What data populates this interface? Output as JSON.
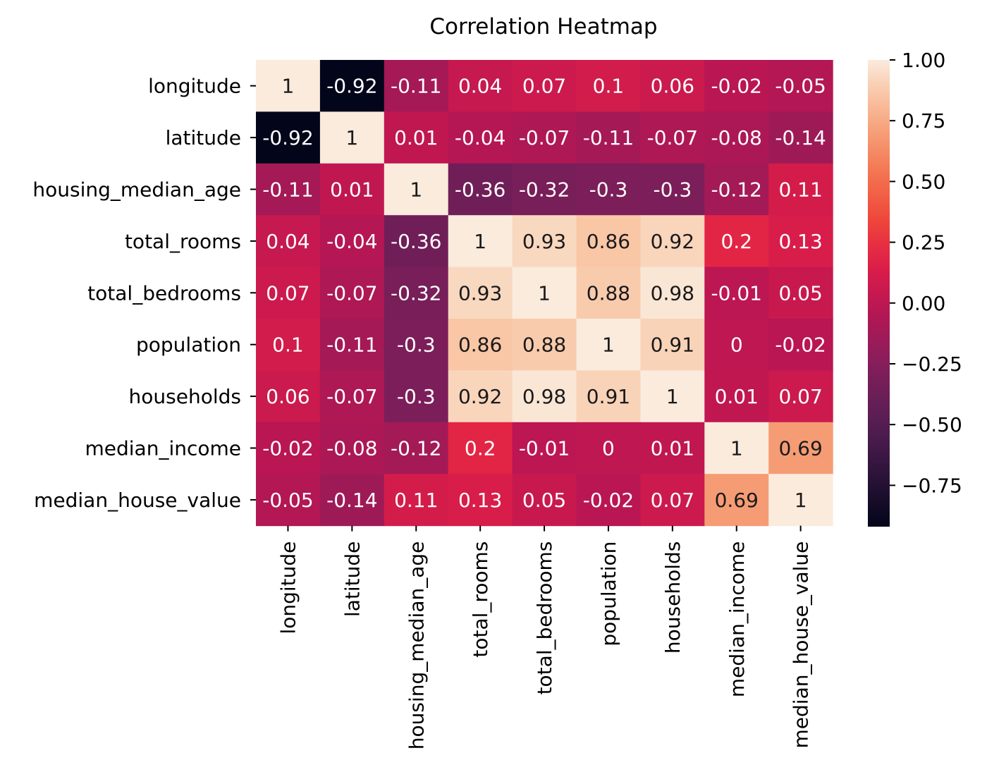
{
  "chart_data": {
    "type": "heatmap",
    "title": "Correlation Heatmap",
    "xlabel": "",
    "ylabel": "",
    "categories": [
      "longitude",
      "latitude",
      "housing_median_age",
      "total_rooms",
      "total_bedrooms",
      "population",
      "households",
      "median_income",
      "median_house_value"
    ],
    "values": [
      [
        1,
        -0.92,
        -0.11,
        0.04,
        0.07,
        0.1,
        0.06,
        -0.02,
        -0.05
      ],
      [
        -0.92,
        1,
        0.01,
        -0.04,
        -0.07,
        -0.11,
        -0.07,
        -0.08,
        -0.14
      ],
      [
        -0.11,
        0.01,
        1,
        -0.36,
        -0.32,
        -0.3,
        -0.3,
        -0.12,
        0.11
      ],
      [
        0.04,
        -0.04,
        -0.36,
        1,
        0.93,
        0.86,
        0.92,
        0.2,
        0.13
      ],
      [
        0.07,
        -0.07,
        -0.32,
        0.93,
        1,
        0.88,
        0.98,
        -0.01,
        0.05
      ],
      [
        0.1,
        -0.11,
        -0.3,
        0.86,
        0.88,
        1,
        0.91,
        0,
        -0.02
      ],
      [
        0.06,
        -0.07,
        -0.3,
        0.92,
        0.98,
        0.91,
        1,
        0.01,
        0.07
      ],
      [
        -0.02,
        -0.08,
        -0.12,
        0.2,
        -0.01,
        0,
        0.01,
        1,
        0.69
      ],
      [
        -0.05,
        -0.14,
        0.11,
        0.13,
        0.05,
        -0.02,
        0.07,
        0.69,
        1
      ]
    ],
    "colorbar": {
      "range": [
        -0.92,
        1
      ],
      "ticks": [
        -0.75,
        -0.5,
        -0.25,
        0.0,
        0.25,
        0.5,
        0.75,
        1.0
      ],
      "tick_labels": [
        "−0.75",
        "−0.50",
        "−0.25",
        "0.00",
        "0.25",
        "0.50",
        "0.75",
        "1.00"
      ],
      "colormap": "rocket"
    },
    "annotations": true,
    "grid": false
  }
}
